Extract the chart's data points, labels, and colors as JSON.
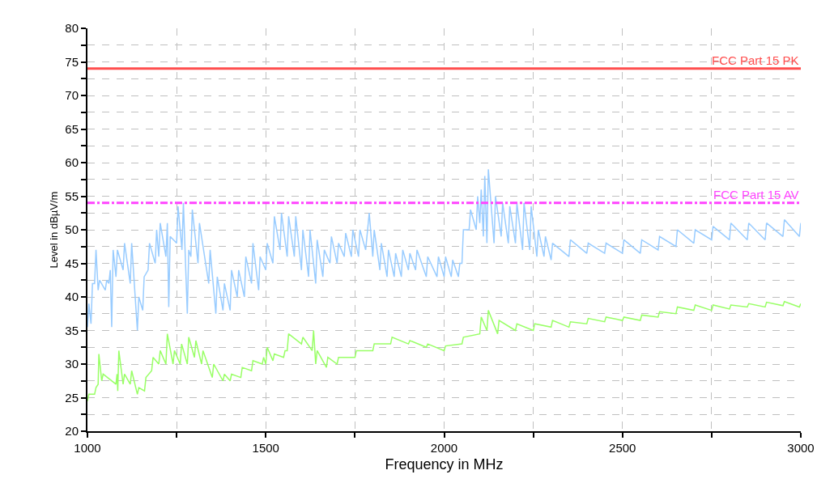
{
  "chart_data": {
    "type": "line",
    "xlabel": "Frequency in MHz",
    "ylabel": "Level in dBµV/m",
    "xlim": [
      1000,
      3000
    ],
    "ylim": [
      20,
      80
    ],
    "xticks": [
      1000,
      {
        "value": 1250,
        "label": null
      },
      1500,
      {
        "value": 1750,
        "label": null
      },
      2000,
      {
        "value": 2250,
        "label": null
      },
      2500,
      {
        "value": 2750,
        "label": null
      },
      3000
    ],
    "yticks": [
      20,
      {
        "value": 22.5,
        "label": null
      },
      25,
      {
        "value": 27.5,
        "label": null
      },
      30,
      {
        "value": 32.5,
        "label": null
      },
      35,
      {
        "value": 37.5,
        "label": null
      },
      40,
      {
        "value": 42.5,
        "label": null
      },
      45,
      {
        "value": 47.5,
        "label": null
      },
      50,
      {
        "value": 52.5,
        "label": null
      },
      55,
      {
        "value": 57.5,
        "label": null
      },
      60,
      {
        "value": 62.5,
        "label": null
      },
      65,
      {
        "value": 67.5,
        "label": null
      },
      70,
      {
        "value": 72.5,
        "label": null
      },
      75,
      {
        "value": 77.5,
        "label": null
      },
      80
    ],
    "grid": true,
    "legend": false,
    "marker": "none",
    "line_style": "solid",
    "ref_lines": [
      {
        "axis": "y",
        "value": 74,
        "label": "FCC Part 15 PK",
        "color": "#ff4d4d",
        "line_style": "solid"
      },
      {
        "axis": "y",
        "value": 54,
        "label": "FCC Part 15 AV",
        "color": "#ff44ff",
        "line_style": "dashdot"
      }
    ],
    "series": [
      {
        "color": "#99ccff",
        "x": [
          1000,
          1004,
          1010,
          1014,
          1020,
          1024,
          1030,
          1034,
          1050,
          1054,
          1060,
          1064,
          1068,
          1072,
          1080,
          1084,
          1100,
          1104,
          1120,
          1124,
          1140,
          1144,
          1155,
          1159,
          1170,
          1174,
          1190,
          1194,
          1200,
          1204,
          1220,
          1224,
          1228,
          1232,
          1250,
          1254,
          1265,
          1269,
          1280,
          1284,
          1290,
          1294,
          1310,
          1314,
          1340,
          1344,
          1360,
          1364,
          1380,
          1384,
          1400,
          1404,
          1420,
          1424,
          1440,
          1444,
          1460,
          1464,
          1480,
          1484,
          1500,
          1504,
          1520,
          1524,
          1540,
          1544,
          1560,
          1564,
          1580,
          1584,
          1600,
          1604,
          1620,
          1624,
          1640,
          1644,
          1660,
          1664,
          1680,
          1684,
          1700,
          1704,
          1720,
          1724,
          1740,
          1744,
          1760,
          1764,
          1780,
          1790,
          1800,
          1804,
          1820,
          1824,
          1840,
          1844,
          1860,
          1864,
          1880,
          1884,
          1900,
          1904,
          1920,
          1924,
          1950,
          1954,
          1980,
          1984,
          2000,
          2004,
          2020,
          2024,
          2040,
          2044,
          2050,
          2054,
          2070,
          2074,
          2090,
          2094,
          2100,
          2104,
          2110,
          2114,
          2120,
          2124,
          2140,
          2144,
          2160,
          2164,
          2180,
          2184,
          2200,
          2204,
          2220,
          2224,
          2240,
          2244,
          2260,
          2264,
          2280,
          2284,
          2300,
          2304,
          2350,
          2354,
          2400,
          2404,
          2450,
          2454,
          2500,
          2504,
          2550,
          2554,
          2600,
          2604,
          2650,
          2654,
          2700,
          2704,
          2750,
          2754,
          2800,
          2804,
          2850,
          2854,
          2900,
          2904,
          2950,
          2954,
          2996,
          3000
        ],
        "values": [
          35.5,
          39,
          36,
          42,
          42,
          47,
          41,
          42.5,
          41,
          42.5,
          42,
          44,
          35.5,
          47,
          43,
          47,
          44,
          48,
          42,
          48,
          35,
          40,
          38,
          43,
          44,
          48,
          45,
          50,
          46,
          51,
          46,
          51,
          38.5,
          49,
          48,
          53.5,
          47,
          54,
          37.5,
          47,
          46,
          53,
          45,
          51,
          42,
          47,
          37.5,
          43,
          38,
          42,
          38,
          44,
          40,
          44,
          40,
          46,
          42,
          48,
          41,
          46,
          44,
          48,
          45,
          52,
          47,
          52.5,
          46,
          52,
          46,
          52,
          44,
          50,
          43,
          50,
          42,
          48.5,
          43,
          47,
          45,
          49,
          45,
          48,
          46,
          49.5,
          46,
          50,
          46,
          50,
          47,
          52.5,
          46,
          50,
          44,
          48,
          43,
          47,
          43,
          46.5,
          43,
          47,
          44,
          46.5,
          44,
          47,
          43,
          46,
          43,
          46,
          43,
          46,
          43,
          45.5,
          43,
          45,
          45,
          50,
          50,
          53,
          50,
          55,
          51,
          56,
          49,
          58,
          48,
          59,
          48,
          55,
          49,
          54,
          48,
          53.5,
          48,
          54,
          47,
          54,
          47,
          53.5,
          46,
          50,
          46,
          49,
          45.5,
          48,
          46,
          48.5,
          46.5,
          48,
          46.5,
          48,
          46.5,
          48.5,
          46.5,
          48.5,
          47,
          49,
          47.5,
          50,
          48,
          50,
          48.5,
          50.5,
          48.5,
          51,
          48.5,
          51,
          48.5,
          51,
          49,
          51.5,
          49,
          51
        ]
      },
      {
        "color": "#99ff66",
        "x": [
          1000,
          1004,
          1020,
          1024,
          1030,
          1032,
          1040,
          1044,
          1080,
          1083,
          1085,
          1088,
          1100,
          1104,
          1120,
          1124,
          1140,
          1144,
          1160,
          1164,
          1180,
          1184,
          1200,
          1204,
          1220,
          1224,
          1240,
          1244,
          1260,
          1264,
          1280,
          1284,
          1300,
          1304,
          1320,
          1324,
          1350,
          1354,
          1380,
          1384,
          1400,
          1404,
          1430,
          1434,
          1460,
          1464,
          1490,
          1494,
          1500,
          1504,
          1520,
          1524,
          1550,
          1554,
          1560,
          1564,
          1600,
          1604,
          1630,
          1634,
          1640,
          1644,
          1670,
          1674,
          1700,
          1704,
          1750,
          1754,
          1800,
          1804,
          1850,
          1854,
          1900,
          1904,
          1950,
          1954,
          2000,
          2004,
          2050,
          2054,
          2100,
          2104,
          2120,
          2124,
          2150,
          2154,
          2200,
          2204,
          2250,
          2254,
          2300,
          2304,
          2350,
          2354,
          2400,
          2404,
          2450,
          2454,
          2500,
          2504,
          2550,
          2554,
          2600,
          2604,
          2650,
          2654,
          2700,
          2704,
          2750,
          2754,
          2800,
          2804,
          2850,
          2854,
          2900,
          2904,
          2950,
          2954,
          2996,
          3000
        ],
        "values": [
          24.5,
          25.5,
          25.5,
          26.5,
          27,
          31.5,
          27.5,
          28.5,
          27,
          28.5,
          26,
          32,
          27,
          28.5,
          27,
          29,
          25.5,
          26.5,
          26,
          28,
          29,
          31,
          30,
          32,
          30,
          34.5,
          30,
          32,
          30,
          33,
          30,
          34,
          31,
          33.5,
          30,
          32,
          28,
          30,
          27.5,
          28.5,
          27.5,
          28.5,
          28,
          29.5,
          29,
          30.5,
          30,
          31,
          30,
          32.5,
          30.5,
          31.5,
          31,
          32,
          32,
          34.5,
          33,
          34,
          32,
          35,
          30,
          32,
          29.5,
          31,
          30,
          31,
          31,
          32,
          32,
          33,
          33,
          34,
          33,
          33.5,
          32.5,
          33,
          32,
          32.7,
          33,
          34,
          34.5,
          37,
          35,
          38,
          34.5,
          36.5,
          35,
          36,
          35,
          36,
          35.5,
          36.5,
          35.5,
          36.3,
          36,
          36.8,
          36.3,
          37,
          36.5,
          37,
          36.5,
          37.3,
          37,
          37.8,
          37.5,
          38.5,
          38,
          38.8,
          38,
          38.8,
          38.2,
          38.8,
          38.5,
          39,
          38.5,
          39.2,
          38.7,
          39.3,
          38.5,
          39
        ]
      }
    ]
  }
}
